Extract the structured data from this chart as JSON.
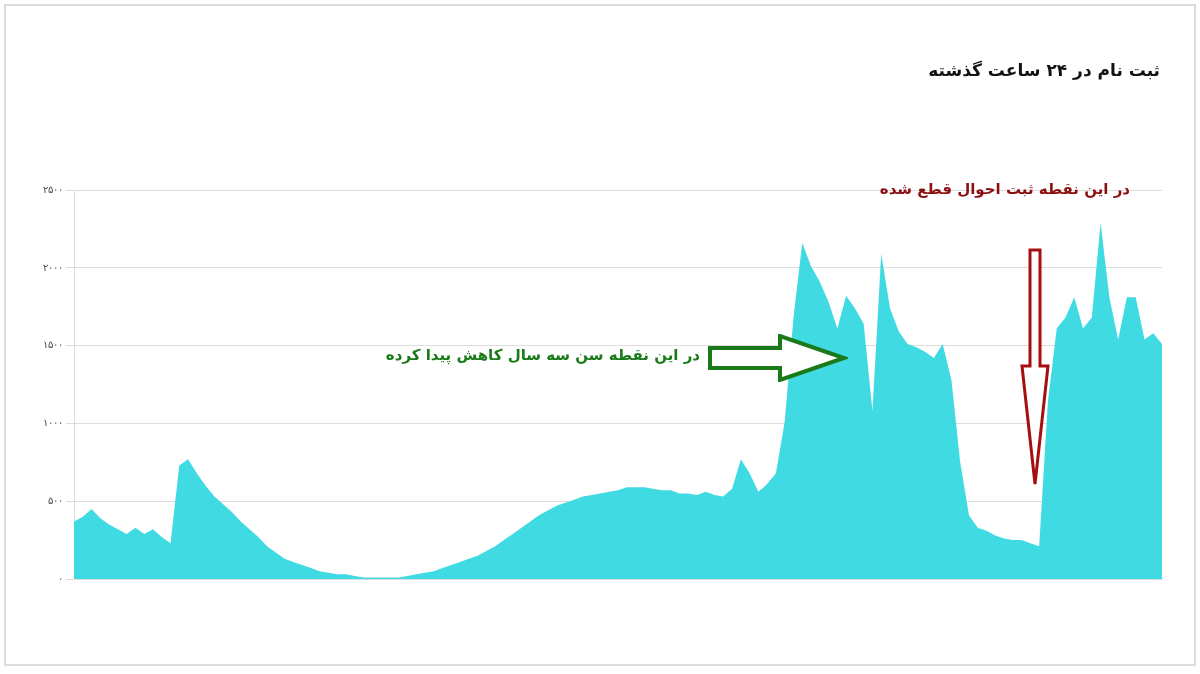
{
  "chart_data": {
    "type": "area",
    "title": "ثبت نام در ۲۴ ساعت گذشته",
    "categories": [
      null,
      null,
      null,
      null,
      null,
      null,
      null,
      null,
      null,
      null,
      null,
      null,
      null,
      null,
      null,
      null,
      null,
      null,
      null,
      null,
      null,
      null,
      null,
      null,
      null,
      null,
      null,
      null,
      null,
      null,
      null,
      null,
      null,
      null,
      null,
      null,
      null,
      null,
      null,
      null,
      null,
      null,
      null,
      null,
      null,
      null,
      null,
      null,
      null,
      null,
      null,
      null,
      null,
      null,
      null,
      null,
      null,
      null,
      null,
      null,
      null,
      null,
      null,
      null,
      null,
      null,
      null,
      null,
      null,
      null,
      null,
      null,
      null,
      null,
      null,
      null,
      null,
      null,
      null,
      null,
      null,
      null,
      null,
      null,
      null,
      null,
      null,
      null,
      null,
      null,
      null,
      null,
      null,
      null,
      null,
      null,
      null,
      null,
      null,
      null,
      null,
      null,
      null,
      null,
      null,
      null,
      null,
      null,
      null,
      null,
      null,
      null,
      null,
      null,
      null,
      null,
      null,
      null,
      null,
      null,
      null,
      null,
      null,
      null,
      null
    ],
    "series": [
      {
        "color": "#40dae2",
        "values": [
          370,
          400,
          450,
          390,
          350,
          320,
          290,
          330,
          290,
          320,
          270,
          230,
          730,
          770,
          680,
          600,
          530,
          480,
          430,
          370,
          320,
          270,
          210,
          170,
          130,
          110,
          90,
          70,
          50,
          40,
          30,
          30,
          20,
          10,
          10,
          10,
          10,
          10,
          20,
          30,
          40,
          50,
          70,
          90,
          110,
          130,
          150,
          180,
          210,
          250,
          290,
          330,
          370,
          410,
          440,
          470,
          490,
          510,
          530,
          540,
          550,
          560,
          570,
          590,
          590,
          590,
          580,
          570,
          570,
          550,
          550,
          540,
          560,
          540,
          530,
          580,
          770,
          680,
          560,
          610,
          680,
          1010,
          1680,
          2160,
          2010,
          1910,
          1780,
          1610,
          1820,
          1740,
          1640,
          1080,
          2090,
          1740,
          1590,
          1510,
          1490,
          1460,
          1420,
          1510,
          1280,
          750,
          410,
          330,
          310,
          280,
          260,
          250,
          250,
          230,
          210,
          1140,
          1610,
          1680,
          1810,
          1610,
          1680,
          2290,
          1810,
          1540,
          1810,
          1810,
          1540,
          1580,
          1510
        ]
      }
    ],
    "ylim": [
      0,
      2500
    ],
    "yticks": [
      {
        "value": 0,
        "label": "۰"
      },
      {
        "value": 500,
        "label": "۵۰۰"
      },
      {
        "value": 1000,
        "label": "۱۰۰۰"
      },
      {
        "value": 1500,
        "label": "۱۵۰۰"
      },
      {
        "value": 2000,
        "label": "۲۰۰۰"
      },
      {
        "value": 2500,
        "label": "۲۵۰۰"
      }
    ],
    "grid": "y",
    "marker": "none",
    "legend": false,
    "annotations": [
      "در این نقطه سن سه سال کاهش پیدا کرده",
      "در این نقطه ثبت احوال قطع شده"
    ]
  }
}
